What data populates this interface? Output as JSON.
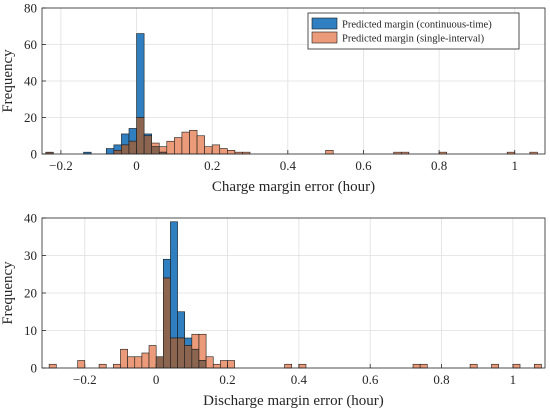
{
  "colors": {
    "series_a": "#2f7fc1",
    "series_b": "#ec9b7a",
    "overlap": "#8c6551",
    "axis": "#262626",
    "grid": "#dfdfdf"
  },
  "legend": {
    "placement": "top-right (upper panel)",
    "items": [
      "Predicted margin (continuous-time)",
      "Predicted margin (single-interval)"
    ]
  },
  "chart_data": [
    {
      "type": "histogram",
      "title": "",
      "xlabel": "Charge margin error (hour)",
      "ylabel": "Frequency",
      "xlim": [
        -0.25,
        1.08
      ],
      "ylim": [
        0,
        80
      ],
      "xticks": [
        -0.2,
        0,
        0.2,
        0.4,
        0.6,
        0.8,
        1
      ],
      "xtick_labels": [
        "−0.2",
        "0",
        "0.2",
        "0.4",
        "0.6",
        "0.8",
        "1"
      ],
      "yticks": [
        0,
        20,
        40,
        60,
        80
      ],
      "grid": true,
      "bin_width": 0.02,
      "series": [
        {
          "name": "Predicted margin (continuous-time)",
          "bins": [
            {
              "x": -0.23,
              "count": 1
            },
            {
              "x": -0.13,
              "count": 1
            },
            {
              "x": -0.07,
              "count": 3
            },
            {
              "x": -0.05,
              "count": 5
            },
            {
              "x": -0.03,
              "count": 11
            },
            {
              "x": -0.01,
              "count": 14
            },
            {
              "x": 0.01,
              "count": 66
            },
            {
              "x": 0.03,
              "count": 11
            },
            {
              "x": 0.05,
              "count": 4
            },
            {
              "x": 0.07,
              "count": 1
            }
          ]
        },
        {
          "name": "Predicted margin (single-interval)",
          "bins": [
            {
              "x": -0.23,
              "count": 1
            },
            {
              "x": -0.05,
              "count": 2
            },
            {
              "x": -0.03,
              "count": 5
            },
            {
              "x": -0.01,
              "count": 7
            },
            {
              "x": 0.01,
              "count": 20
            },
            {
              "x": 0.03,
              "count": 10
            },
            {
              "x": 0.05,
              "count": 6
            },
            {
              "x": 0.07,
              "count": 4
            },
            {
              "x": 0.09,
              "count": 7
            },
            {
              "x": 0.11,
              "count": 9
            },
            {
              "x": 0.13,
              "count": 12
            },
            {
              "x": 0.15,
              "count": 13
            },
            {
              "x": 0.17,
              "count": 10
            },
            {
              "x": 0.19,
              "count": 4
            },
            {
              "x": 0.21,
              "count": 5
            },
            {
              "x": 0.23,
              "count": 3
            },
            {
              "x": 0.25,
              "count": 2
            },
            {
              "x": 0.27,
              "count": 1
            },
            {
              "x": 0.29,
              "count": 1
            },
            {
              "x": 0.51,
              "count": 2
            },
            {
              "x": 0.69,
              "count": 1
            },
            {
              "x": 0.71,
              "count": 1
            },
            {
              "x": 0.81,
              "count": 1
            },
            {
              "x": 0.99,
              "count": 1
            },
            {
              "x": 1.05,
              "count": 1
            }
          ]
        }
      ]
    },
    {
      "type": "histogram",
      "title": "",
      "xlabel": "Discharge margin error (hour)",
      "ylabel": "Frequency",
      "xlim": [
        -0.32,
        1.09
      ],
      "ylim": [
        0,
        40
      ],
      "xticks": [
        -0.2,
        0,
        0.2,
        0.4,
        0.6,
        0.8,
        1
      ],
      "xtick_labels": [
        "−0.2",
        "0",
        "0.2",
        "0.4",
        "0.6",
        "0.8",
        "1"
      ],
      "yticks": [
        0,
        10,
        20,
        30,
        40
      ],
      "grid": true,
      "bin_width": 0.02,
      "series": [
        {
          "name": "Predicted margin (continuous-time)",
          "bins": [
            {
              "x": 0.01,
              "count": 3
            },
            {
              "x": 0.03,
              "count": 29
            },
            {
              "x": 0.05,
              "count": 39
            },
            {
              "x": 0.07,
              "count": 15
            },
            {
              "x": 0.09,
              "count": 8
            },
            {
              "x": 0.11,
              "count": 5
            },
            {
              "x": 0.13,
              "count": 2
            }
          ]
        },
        {
          "name": "Predicted margin (single-interval)",
          "bins": [
            {
              "x": -0.29,
              "count": 1
            },
            {
              "x": -0.21,
              "count": 2
            },
            {
              "x": -0.15,
              "count": 1
            },
            {
              "x": -0.11,
              "count": 1
            },
            {
              "x": -0.09,
              "count": 5
            },
            {
              "x": -0.07,
              "count": 3
            },
            {
              "x": -0.05,
              "count": 3
            },
            {
              "x": -0.03,
              "count": 4
            },
            {
              "x": -0.01,
              "count": 6
            },
            {
              "x": 0.01,
              "count": 3
            },
            {
              "x": 0.03,
              "count": 24
            },
            {
              "x": 0.05,
              "count": 8
            },
            {
              "x": 0.07,
              "count": 8
            },
            {
              "x": 0.09,
              "count": 6
            },
            {
              "x": 0.11,
              "count": 9
            },
            {
              "x": 0.13,
              "count": 9
            },
            {
              "x": 0.15,
              "count": 3
            },
            {
              "x": 0.17,
              "count": 1
            },
            {
              "x": 0.19,
              "count": 2
            },
            {
              "x": 0.21,
              "count": 2
            },
            {
              "x": 0.37,
              "count": 1
            },
            {
              "x": 0.41,
              "count": 1
            },
            {
              "x": 0.73,
              "count": 1
            },
            {
              "x": 0.75,
              "count": 1
            },
            {
              "x": 0.89,
              "count": 1
            },
            {
              "x": 0.95,
              "count": 1
            },
            {
              "x": 1.01,
              "count": 1
            },
            {
              "x": 1.07,
              "count": 1
            }
          ]
        }
      ]
    }
  ]
}
